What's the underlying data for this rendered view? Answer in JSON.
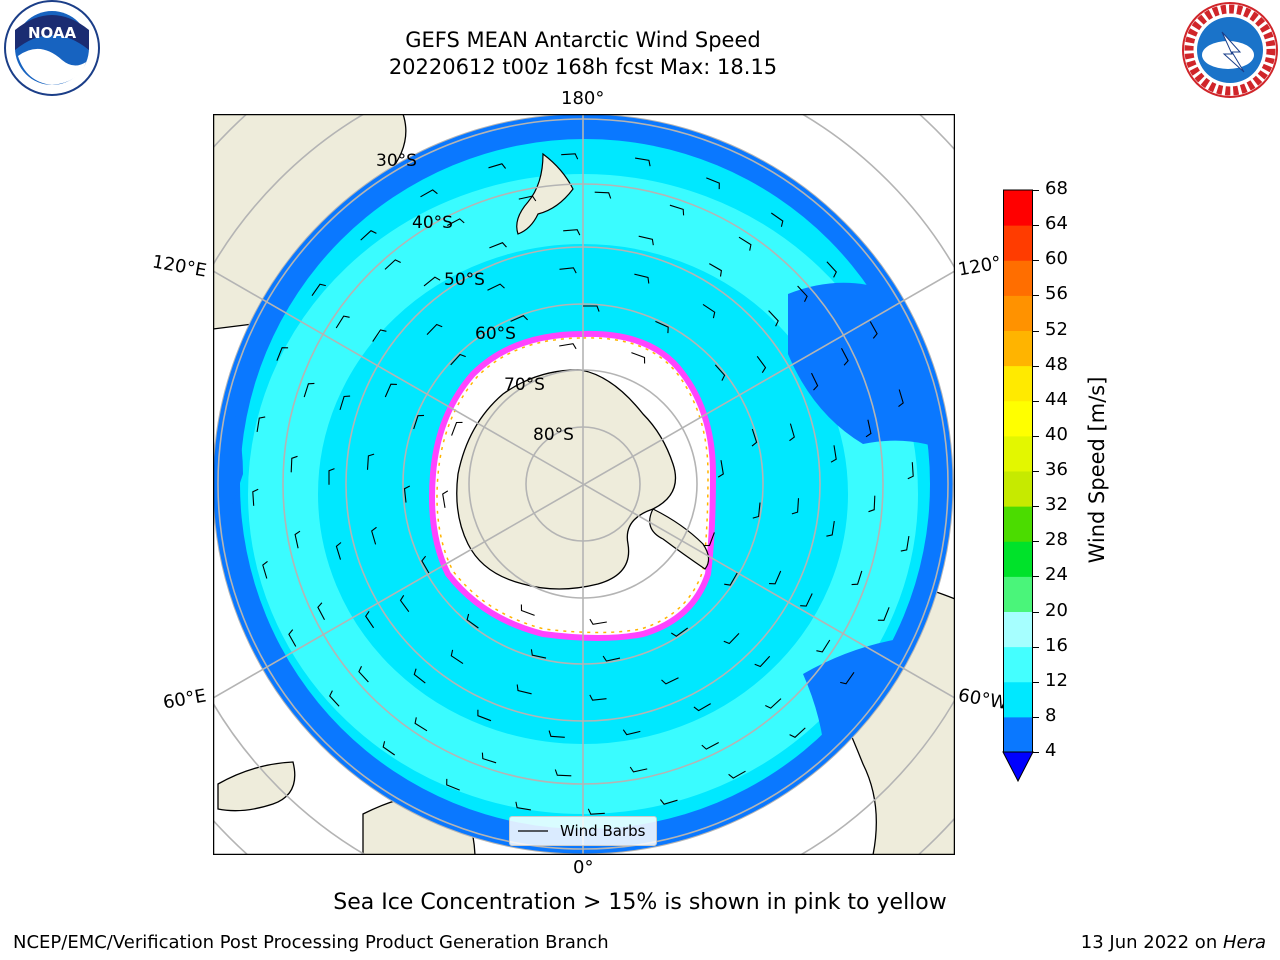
{
  "title_line1": "GEFS MEAN Antarctic Wind Speed",
  "title_line2": "20220612 t00z 168h fcst   Max: 18.15",
  "longitude_labels": {
    "top": "180°",
    "bottom": "0°",
    "upper_left": "120°E",
    "upper_right": "120°",
    "lower_left": "60°E",
    "lower_right": "60°W"
  },
  "latitude_labels": [
    "30°S",
    "40°S",
    "50°S",
    "60°S",
    "70°S",
    "80°S"
  ],
  "legend": {
    "label": "Wind Barbs"
  },
  "colorbar": {
    "label": "Wind Speed [m/s]",
    "ticks": [
      "4",
      "8",
      "12",
      "16",
      "20",
      "24",
      "28",
      "32",
      "36",
      "40",
      "44",
      "48",
      "52",
      "56",
      "60",
      "64",
      "68"
    ],
    "colors": [
      "#0a78ff",
      "#00e8ff",
      "#44ffff",
      "#a6ffff",
      "#4af57a",
      "#00e22a",
      "#4bdc00",
      "#c6ea00",
      "#e3f700",
      "#ffff00",
      "#ffea00",
      "#ffb400",
      "#ff9200",
      "#ff6e00",
      "#ff3c00",
      "#ff0000"
    ],
    "extend_color": "#0000ff"
  },
  "map_colors": {
    "ocean_low": "#0a78ff",
    "ocean_mid": "#00e8ff",
    "ocean_high": "#44ffff",
    "land": "#eeecdb",
    "ice_edge": "#ff44ff"
  },
  "sea_ice_note": "Sea Ice Concentration > 15% is shown in pink to yellow",
  "footer_left": "NCEP/EMC/Verification Post Processing Product Generation Branch",
  "footer_right_prefix": "13 Jun 2022 on ",
  "footer_right_machine": "Hera",
  "logos": {
    "left_text": "NOAA",
    "right_text": "NATIONAL WEATHER SERVICE"
  }
}
